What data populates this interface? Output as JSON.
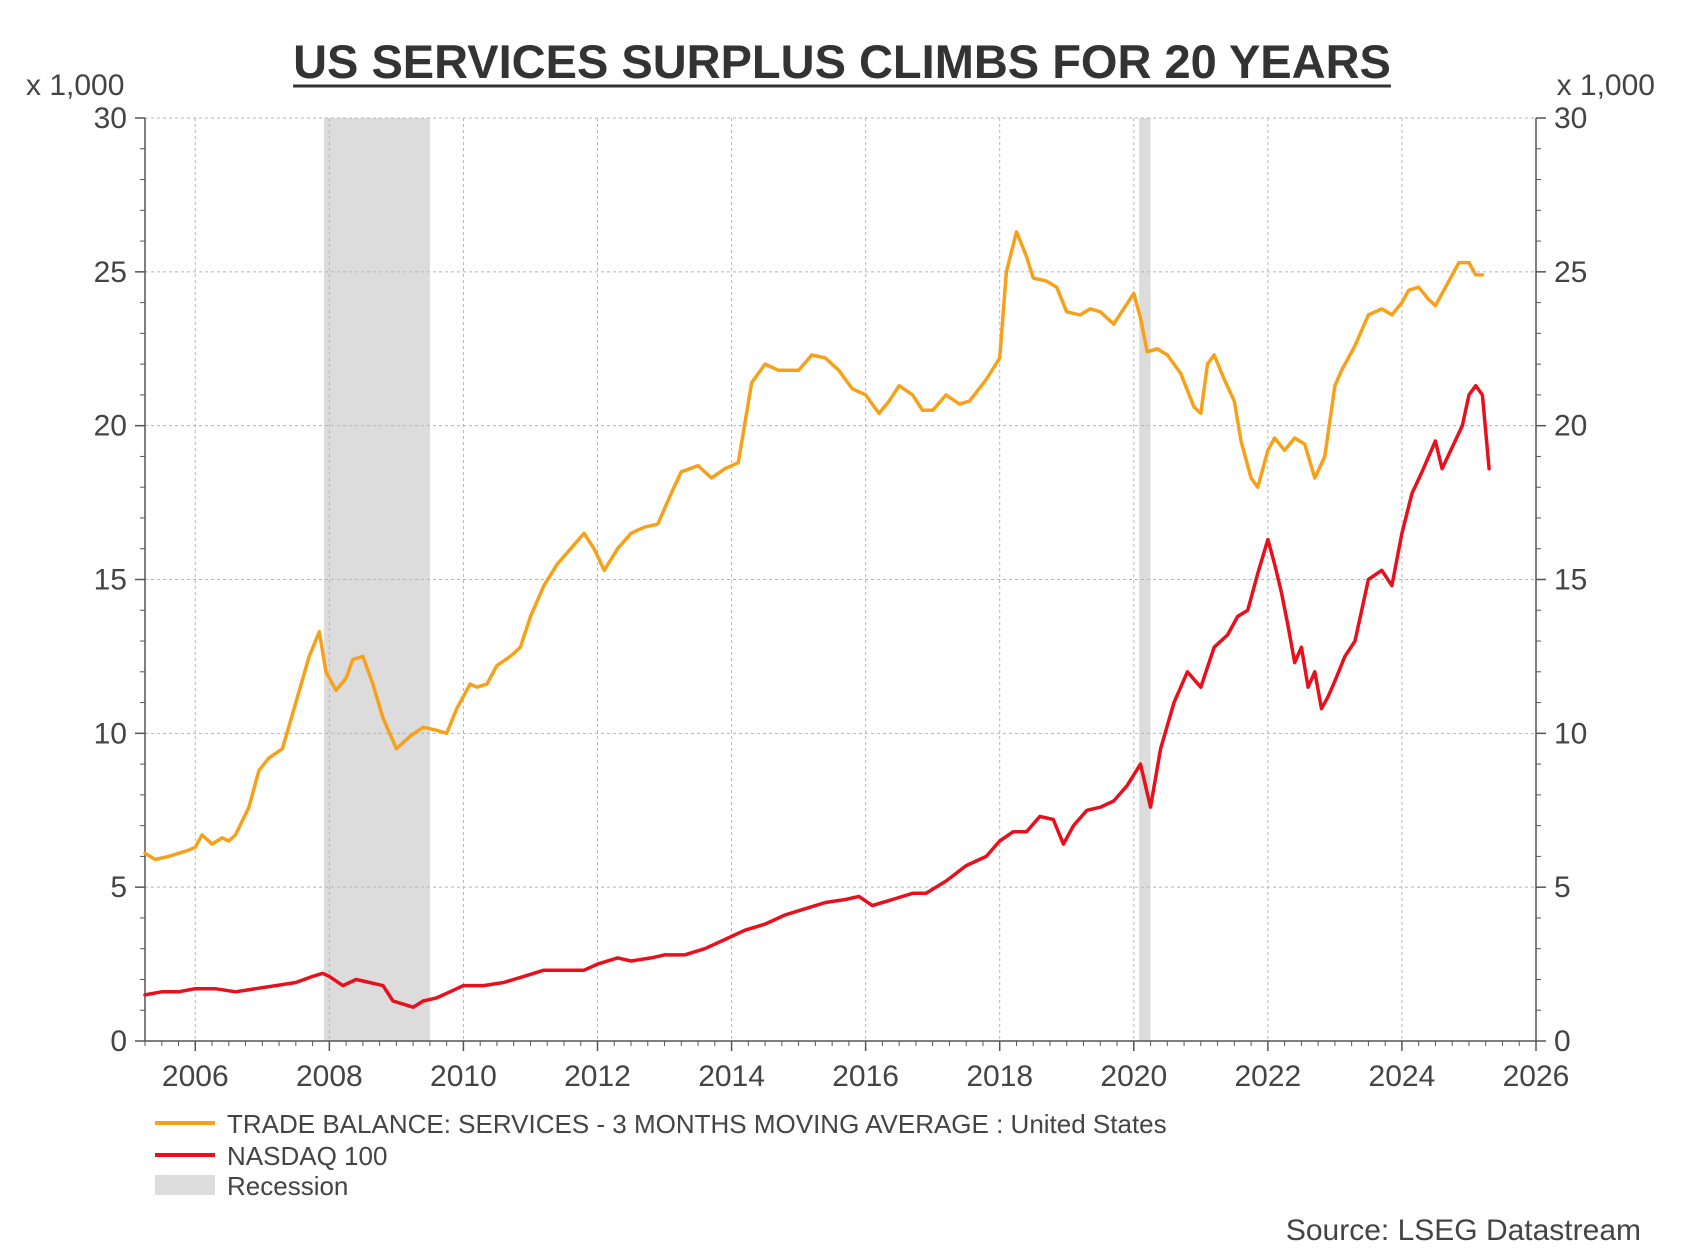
{
  "chart_data": {
    "type": "line",
    "title": "US SERVICES SURPLUS CLIMBS FOR 20 YEARS",
    "y_unit_left": "x 1,000",
    "y_unit_right": "x 1,000",
    "ylim": [
      0,
      30
    ],
    "y_ticks": [
      "0",
      "5",
      "10",
      "15",
      "20",
      "25",
      "30"
    ],
    "xlim": [
      2005.25,
      2026.0
    ],
    "x_ticks": [
      "2006",
      "2008",
      "2010",
      "2012",
      "2014",
      "2016",
      "2018",
      "2020",
      "2022",
      "2024",
      "2026"
    ],
    "grid": true,
    "legend_position": "bottom-left",
    "source": "Source: LSEG Datastream",
    "recessions": [
      {
        "start": 2007.92,
        "end": 2009.5
      },
      {
        "start": 2020.08,
        "end": 2020.25
      }
    ],
    "recession_label": "Recession",
    "recession_color": "#dcdcdc",
    "series": [
      {
        "name": "TRADE BALANCE: SERVICES - 3 MONTHS MOVING AVERAGE : United States",
        "color": "#f7a11a",
        "x": [
          2005.25,
          2005.4,
          2005.6,
          2005.9,
          2006.0,
          2006.1,
          2006.25,
          2006.4,
          2006.5,
          2006.6,
          2006.8,
          2006.95,
          2007.1,
          2007.3,
          2007.5,
          2007.7,
          2007.85,
          2007.95,
          2008.1,
          2008.25,
          2008.35,
          2008.5,
          2008.65,
          2008.8,
          2009.0,
          2009.2,
          2009.4,
          2009.6,
          2009.75,
          2009.9,
          2010.1,
          2010.2,
          2010.35,
          2010.5,
          2010.7,
          2010.85,
          2011.0,
          2011.2,
          2011.4,
          2011.6,
          2011.8,
          2011.95,
          2012.1,
          2012.3,
          2012.5,
          2012.7,
          2012.9,
          2013.1,
          2013.25,
          2013.5,
          2013.7,
          2013.9,
          2014.0,
          2014.1,
          2014.3,
          2014.5,
          2014.7,
          2015.0,
          2015.2,
          2015.4,
          2015.6,
          2015.8,
          2016.0,
          2016.2,
          2016.35,
          2016.5,
          2016.7,
          2016.85,
          2017.0,
          2017.2,
          2017.4,
          2017.55,
          2017.8,
          2018.0,
          2018.1,
          2018.25,
          2018.4,
          2018.5,
          2018.7,
          2018.85,
          2019.0,
          2019.2,
          2019.35,
          2019.5,
          2019.7,
          2019.85,
          2020.0,
          2020.1,
          2020.2,
          2020.35,
          2020.5,
          2020.7,
          2020.9,
          2021.0,
          2021.1,
          2021.2,
          2021.35,
          2021.5,
          2021.6,
          2021.75,
          2021.85,
          2022.0,
          2022.1,
          2022.25,
          2022.4,
          2022.55,
          2022.7,
          2022.85,
          2023.0,
          2023.1,
          2023.3,
          2023.5,
          2023.7,
          2023.85,
          2024.0,
          2024.1,
          2024.25,
          2024.4,
          2024.5,
          2024.7,
          2024.85,
          2025.0,
          2025.1,
          2025.2
        ],
        "y": [
          6.1,
          5.9,
          6.0,
          6.2,
          6.3,
          6.7,
          6.4,
          6.6,
          6.5,
          6.7,
          7.6,
          8.8,
          9.2,
          9.5,
          11.0,
          12.5,
          13.3,
          12.0,
          11.4,
          11.8,
          12.4,
          12.5,
          11.6,
          10.5,
          9.5,
          9.9,
          10.2,
          10.1,
          10.0,
          10.8,
          11.6,
          11.5,
          11.6,
          12.2,
          12.5,
          12.8,
          13.8,
          14.8,
          15.5,
          16.0,
          16.5,
          16.0,
          15.3,
          16.0,
          16.5,
          16.7,
          16.8,
          17.8,
          18.5,
          18.7,
          18.3,
          18.6,
          18.7,
          18.8,
          21.4,
          22.0,
          21.8,
          21.8,
          22.3,
          22.2,
          21.8,
          21.2,
          21.0,
          20.4,
          20.8,
          21.3,
          21.0,
          20.5,
          20.5,
          21.0,
          20.7,
          20.8,
          21.5,
          22.2,
          25.0,
          26.3,
          25.5,
          24.8,
          24.7,
          24.5,
          23.7,
          23.6,
          23.8,
          23.7,
          23.3,
          23.8,
          24.3,
          23.5,
          22.4,
          22.5,
          22.3,
          21.7,
          20.6,
          20.4,
          22.0,
          22.3,
          21.5,
          20.8,
          19.5,
          18.3,
          18.0,
          19.2,
          19.6,
          19.2,
          19.6,
          19.4,
          18.3,
          19.0,
          21.3,
          21.8,
          22.6,
          23.6,
          23.8,
          23.6,
          24.0,
          24.4,
          24.5,
          24.1,
          23.9,
          24.7,
          25.3,
          25.3,
          24.9,
          24.9
        ]
      },
      {
        "name": "NASDAQ 100",
        "color": "#e8101c",
        "x": [
          2005.25,
          2005.5,
          2005.75,
          2006.0,
          2006.3,
          2006.6,
          2006.9,
          2007.2,
          2007.5,
          2007.75,
          2007.9,
          2008.0,
          2008.2,
          2008.4,
          2008.6,
          2008.8,
          2008.95,
          2009.1,
          2009.25,
          2009.4,
          2009.6,
          2009.8,
          2010.0,
          2010.3,
          2010.6,
          2010.9,
          2011.2,
          2011.5,
          2011.8,
          2012.0,
          2012.3,
          2012.5,
          2012.8,
          2013.0,
          2013.3,
          2013.6,
          2013.9,
          2014.2,
          2014.5,
          2014.8,
          2015.1,
          2015.4,
          2015.7,
          2015.9,
          2016.1,
          2016.4,
          2016.7,
          2016.9,
          2017.2,
          2017.5,
          2017.8,
          2018.0,
          2018.2,
          2018.4,
          2018.6,
          2018.8,
          2018.95,
          2019.1,
          2019.3,
          2019.5,
          2019.7,
          2019.9,
          2020.1,
          2020.25,
          2020.4,
          2020.6,
          2020.8,
          2021.0,
          2021.2,
          2021.4,
          2021.55,
          2021.7,
          2021.85,
          2022.0,
          2022.1,
          2022.2,
          2022.3,
          2022.4,
          2022.5,
          2022.6,
          2022.7,
          2022.8,
          2022.9,
          2023.0,
          2023.15,
          2023.3,
          2023.5,
          2023.7,
          2023.85,
          2024.0,
          2024.15,
          2024.3,
          2024.5,
          2024.6,
          2024.75,
          2024.9,
          2025.0,
          2025.1,
          2025.2,
          2025.3
        ],
        "y": [
          1.5,
          1.6,
          1.6,
          1.7,
          1.7,
          1.6,
          1.7,
          1.8,
          1.9,
          2.1,
          2.2,
          2.1,
          1.8,
          2.0,
          1.9,
          1.8,
          1.3,
          1.2,
          1.1,
          1.3,
          1.4,
          1.6,
          1.8,
          1.8,
          1.9,
          2.1,
          2.3,
          2.3,
          2.3,
          2.5,
          2.7,
          2.6,
          2.7,
          2.8,
          2.8,
          3.0,
          3.3,
          3.6,
          3.8,
          4.1,
          4.3,
          4.5,
          4.6,
          4.7,
          4.4,
          4.6,
          4.8,
          4.8,
          5.2,
          5.7,
          6.0,
          6.5,
          6.8,
          6.8,
          7.3,
          7.2,
          6.4,
          7.0,
          7.5,
          7.6,
          7.8,
          8.3,
          9.0,
          7.6,
          9.5,
          11.0,
          12.0,
          11.5,
          12.8,
          13.2,
          13.8,
          14.0,
          15.2,
          16.3,
          15.5,
          14.6,
          13.5,
          12.3,
          12.8,
          11.5,
          12.0,
          10.8,
          11.2,
          11.7,
          12.5,
          13.0,
          15.0,
          15.3,
          14.8,
          16.5,
          17.8,
          18.5,
          19.5,
          18.6,
          19.3,
          20.0,
          21.0,
          21.3,
          21.0,
          18.6
        ]
      }
    ]
  }
}
